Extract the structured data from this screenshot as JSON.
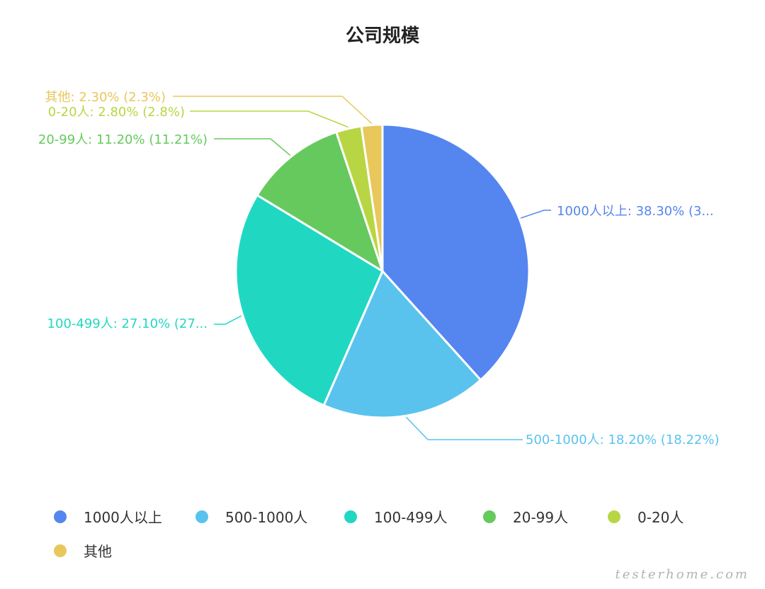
{
  "chart_data": {
    "type": "pie",
    "title": "公司规模",
    "slices": [
      {
        "name": "1000人以上",
        "value": 38.3,
        "label": "1000人以上: 38.30% (3...",
        "color": "#5585EF"
      },
      {
        "name": "500-1000人",
        "value": 18.22,
        "label": "500-1000人: 18.20% (18.22%)",
        "color": "#59C3EE"
      },
      {
        "name": "100-499人",
        "value": 27.1,
        "label": "100-499人: 27.10% (27...",
        "color": "#20D8C2"
      },
      {
        "name": "20-99人",
        "value": 11.21,
        "label": "20-99人: 11.20% (11.21%)",
        "color": "#66C95D"
      },
      {
        "name": "0-20人",
        "value": 2.8,
        "label": "0-20人: 2.80% (2.8%)",
        "color": "#B8D643"
      },
      {
        "name": "其他",
        "value": 2.3,
        "label": "其他: 2.30% (2.3%)",
        "color": "#E8C75B"
      }
    ],
    "legend_position": "bottom-left"
  },
  "watermark": "testerhome.com"
}
